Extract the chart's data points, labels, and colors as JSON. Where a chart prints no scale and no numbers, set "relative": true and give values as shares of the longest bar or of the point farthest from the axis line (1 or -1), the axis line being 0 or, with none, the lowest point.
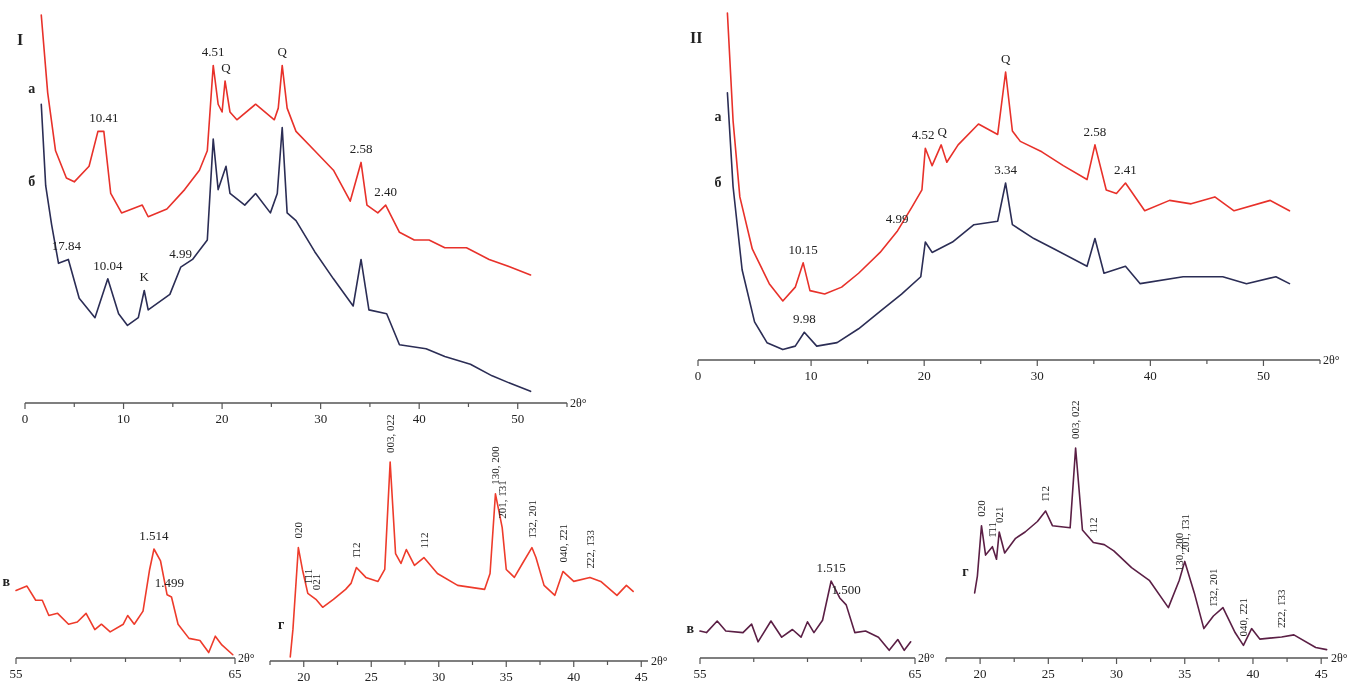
{
  "chart_data": [
    {
      "type": "line",
      "title": "I",
      "xlabel": "2θ°",
      "relative": true,
      "xlim": [
        0,
        55
      ],
      "xticks": [
        0,
        {
          "value": 5,
          "label": null
        },
        10,
        {
          "value": 15,
          "label": null
        },
        20,
        {
          "value": 25,
          "label": null
        },
        30,
        {
          "value": 35,
          "label": null
        },
        40,
        {
          "value": 45,
          "label": null
        },
        50,
        {
          "value": 55,
          "label": null
        }
      ],
      "series": [
        {
          "name": "а",
          "color": "#e8312a",
          "x": [
            1.65,
            2.3,
            3.1,
            4.2,
            5.0,
            6.5,
            7.4,
            8.0,
            8.7,
            9.8,
            11.9,
            12.5,
            14.4,
            16.2,
            17.7,
            18.5,
            19.1,
            19.6,
            20.0,
            20.3,
            20.8,
            21.5,
            23.4,
            25.3,
            25.7,
            26.1,
            26.6,
            27.5,
            29.4,
            31.3,
            33.0,
            34.1,
            34.7,
            35.8,
            36.6,
            38.0,
            39.5,
            41.0,
            42.6,
            44.8,
            47.1,
            49.3,
            51.3
          ],
          "values": [
            1.0,
            0.8,
            0.65,
            0.58,
            0.57,
            0.61,
            0.7,
            0.7,
            0.54,
            0.49,
            0.51,
            0.48,
            0.5,
            0.55,
            0.6,
            0.65,
            0.87,
            0.77,
            0.75,
            0.83,
            0.75,
            0.73,
            0.77,
            0.73,
            0.76,
            0.87,
            0.76,
            0.7,
            0.65,
            0.6,
            0.52,
            0.62,
            0.51,
            0.49,
            0.51,
            0.44,
            0.42,
            0.42,
            0.4,
            0.4,
            0.37,
            0.35,
            0.33
          ]
        },
        {
          "name": "б",
          "color": "#2b2d55",
          "x": [
            1.65,
            2.1,
            2.7,
            3.4,
            4.4,
            5.5,
            7.1,
            8.4,
            9.5,
            10.4,
            11.5,
            12.1,
            12.5,
            14.7,
            15.8,
            17.0,
            18.5,
            19.1,
            19.6,
            20.4,
            20.8,
            22.3,
            23.4,
            24.9,
            25.6,
            26.1,
            26.6,
            27.5,
            29.4,
            31.3,
            33.3,
            34.1,
            34.9,
            36.7,
            38.0,
            40.7,
            42.6,
            45.2,
            47.4,
            49.3,
            51.3
          ],
          "values": [
            0.77,
            0.56,
            0.46,
            0.36,
            0.37,
            0.27,
            0.22,
            0.32,
            0.23,
            0.2,
            0.22,
            0.29,
            0.24,
            0.28,
            0.35,
            0.37,
            0.42,
            0.68,
            0.55,
            0.61,
            0.54,
            0.51,
            0.54,
            0.49,
            0.54,
            0.71,
            0.49,
            0.47,
            0.39,
            0.32,
            0.25,
            0.37,
            0.24,
            0.23,
            0.15,
            0.14,
            0.12,
            0.1,
            0.07,
            0.05,
            0.03
          ]
        }
      ],
      "annotations": [
        {
          "text": "10.41",
          "x": 8,
          "y": 0.7
        },
        {
          "text": "4.51",
          "x": 19.1,
          "y": 0.87
        },
        {
          "text": "Q",
          "x": 20.4,
          "y": 0.83
        },
        {
          "text": "Q",
          "x": 26.1,
          "y": 0.87
        },
        {
          "text": "2.58",
          "x": 34.1,
          "y": 0.62
        },
        {
          "text": "2.40",
          "x": 36.6,
          "y": 0.51
        },
        {
          "text": "17.84",
          "x": 4.2,
          "y": 0.37
        },
        {
          "text": "10.04",
          "x": 8.4,
          "y": 0.32
        },
        {
          "text": "K",
          "x": 12.1,
          "y": 0.29
        },
        {
          "text": "4.99",
          "x": 15.8,
          "y": 0.35
        }
      ]
    },
    {
      "type": "line",
      "title": "II",
      "xlabel": "2θ°",
      "relative": true,
      "xlim": [
        0,
        55
      ],
      "xticks": [
        0,
        {
          "value": 5,
          "label": null
        },
        10,
        {
          "value": 15,
          "label": null
        },
        20,
        {
          "value": 25,
          "label": null
        },
        30,
        {
          "value": 35,
          "label": null
        },
        40,
        {
          "value": 45,
          "label": null
        },
        50,
        {
          "value": 55,
          "label": null
        }
      ],
      "series": [
        {
          "name": "а",
          "color": "#e8312a",
          "x": [
            2.6,
            3.1,
            3.7,
            4.8,
            6.3,
            7.5,
            8.6,
            9.3,
            9.9,
            11.2,
            12.7,
            14.2,
            16.1,
            17.6,
            18.9,
            19.8,
            20.1,
            20.7,
            21.5,
            22.0,
            23.0,
            24.8,
            26.5,
            27.2,
            27.8,
            28.5,
            30.4,
            32.3,
            34.4,
            35.1,
            36.1,
            37.0,
            37.8,
            39.5,
            41.7,
            43.6,
            45.7,
            47.4,
            50.6,
            52.3
          ],
          "values": [
            1.0,
            0.69,
            0.47,
            0.32,
            0.22,
            0.17,
            0.21,
            0.28,
            0.2,
            0.19,
            0.21,
            0.25,
            0.31,
            0.37,
            0.44,
            0.49,
            0.61,
            0.56,
            0.62,
            0.57,
            0.62,
            0.68,
            0.65,
            0.83,
            0.66,
            0.63,
            0.6,
            0.56,
            0.52,
            0.62,
            0.49,
            0.48,
            0.51,
            0.43,
            0.46,
            0.45,
            0.47,
            0.43,
            0.46,
            0.43
          ]
        },
        {
          "name": "б",
          "color": "#2b2d55",
          "x": [
            2.6,
            3.1,
            3.9,
            5.0,
            6.1,
            7.5,
            8.6,
            9.4,
            10.5,
            12.3,
            14.2,
            16.1,
            18.0,
            19.7,
            20.1,
            20.7,
            22.5,
            24.4,
            26.5,
            27.2,
            27.8,
            29.7,
            31.5,
            34.4,
            35.1,
            35.9,
            37.8,
            39.1,
            42.9,
            46.4,
            48.5,
            51.1,
            52.3
          ],
          "values": [
            0.77,
            0.5,
            0.26,
            0.11,
            0.05,
            0.03,
            0.04,
            0.08,
            0.04,
            0.05,
            0.09,
            0.14,
            0.19,
            0.24,
            0.34,
            0.31,
            0.34,
            0.39,
            0.4,
            0.51,
            0.39,
            0.35,
            0.32,
            0.27,
            0.35,
            0.25,
            0.27,
            0.22,
            0.24,
            0.24,
            0.22,
            0.24,
            0.22
          ]
        }
      ],
      "annotations": [
        {
          "text": "10.15",
          "x": 9.3,
          "y": 0.28
        },
        {
          "text": "4.99",
          "x": 17.6,
          "y": 0.37
        },
        {
          "text": "4.52",
          "x": 19.9,
          "y": 0.61
        },
        {
          "text": "Q",
          "x": 21.6,
          "y": 0.62
        },
        {
          "text": "Q",
          "x": 27.2,
          "y": 0.83
        },
        {
          "text": "2.58",
          "x": 35.1,
          "y": 0.62
        },
        {
          "text": "2.41",
          "x": 37.8,
          "y": 0.51
        },
        {
          "text": "3.34",
          "x": 27.2,
          "y": 0.51
        },
        {
          "text": "9.98",
          "x": 9.4,
          "y": 0.08
        }
      ]
    },
    {
      "type": "line",
      "xlabel": "2θ°",
      "relative": true,
      "xlim": [
        55,
        65
      ],
      "xticks": [
        55,
        {
          "value": 57.5,
          "label": null
        },
        {
          "value": 60,
          "label": null
        },
        {
          "value": 62.5,
          "label": null
        },
        65
      ],
      "series": [
        {
          "name": "в",
          "color": "#ee3b2b",
          "x": [
            55.0,
            55.5,
            55.9,
            56.2,
            56.5,
            56.9,
            57.4,
            57.8,
            58.2,
            58.6,
            58.9,
            59.3,
            59.9,
            60.1,
            60.4,
            60.8,
            61.1,
            61.3,
            61.6,
            61.9,
            62.1,
            62.4,
            62.9,
            63.4,
            63.8,
            64.1,
            64.4,
            64.9
          ],
          "values": [
            0.62,
            0.66,
            0.53,
            0.53,
            0.39,
            0.41,
            0.31,
            0.33,
            0.41,
            0.26,
            0.31,
            0.24,
            0.31,
            0.39,
            0.31,
            0.43,
            0.81,
            1.0,
            0.89,
            0.58,
            0.56,
            0.31,
            0.18,
            0.16,
            0.05,
            0.2,
            0.12,
            0.03
          ]
        }
      ],
      "annotations": [
        {
          "text": "1.514",
          "x": 61.3,
          "y": 1.0
        },
        {
          "text": "1.499",
          "x": 62.0,
          "y": 0.57
        }
      ]
    },
    {
      "type": "line",
      "xlabel": "2θ°",
      "relative": true,
      "xlim": [
        17.5,
        45.5
      ],
      "xticks": [
        {
          "value": 17.5,
          "label": null
        },
        20,
        {
          "value": 22.5,
          "label": null
        },
        25,
        {
          "value": 27.5,
          "label": null
        },
        30,
        {
          "value": 32.5,
          "label": null
        },
        35,
        {
          "value": 37.5,
          "label": null
        },
        40,
        {
          "value": 42.5,
          "label": null
        },
        45
      ],
      "series": [
        {
          "name": "г",
          "color": "#ee3b2b",
          "x": [
            19.0,
            19.2,
            19.6,
            19.9,
            20.3,
            20.9,
            21.4,
            22.2,
            23.1,
            23.5,
            23.9,
            24.6,
            25.5,
            26.0,
            26.4,
            26.8,
            27.2,
            27.6,
            28.2,
            28.9,
            29.9,
            31.4,
            33.4,
            33.8,
            34.2,
            34.7,
            35.0,
            35.6,
            36.2,
            36.9,
            37.2,
            37.8,
            38.6,
            39.2,
            40.0,
            41.2,
            42.0,
            43.2,
            43.9,
            44.4
          ],
          "values": [
            0.02,
            0.16,
            0.57,
            0.46,
            0.34,
            0.31,
            0.27,
            0.31,
            0.36,
            0.39,
            0.47,
            0.42,
            0.4,
            0.46,
            1.0,
            0.54,
            0.49,
            0.56,
            0.48,
            0.52,
            0.44,
            0.38,
            0.36,
            0.44,
            0.84,
            0.67,
            0.46,
            0.42,
            0.49,
            0.57,
            0.52,
            0.38,
            0.33,
            0.45,
            0.4,
            0.42,
            0.4,
            0.33,
            0.38,
            0.35
          ]
        }
      ],
      "annotations": [
        {
          "text": "020",
          "x": 19.6,
          "y": 0.57
        },
        {
          "text": "1̄11",
          "x": 20.3,
          "y": 0.34
        },
        {
          "text": "021",
          "x": 20.9,
          "y": 0.31
        },
        {
          "text": "1̄12",
          "x": 23.9,
          "y": 0.47
        },
        {
          "text": "003, 022",
          "x": 26.4,
          "y": 1.0
        },
        {
          "text": "112",
          "x": 28.9,
          "y": 0.52
        },
        {
          "text": "130, 200",
          "x": 34.2,
          "y": 0.84
        },
        {
          "text": "2̄01, 1̄31",
          "x": 34.7,
          "y": 0.67
        },
        {
          "text": "1̄32, 201",
          "x": 36.9,
          "y": 0.57
        },
        {
          "text": "040, 2̄21",
          "x": 39.2,
          "y": 0.45
        },
        {
          "text": "2̄22, 1̄33",
          "x": 41.2,
          "y": 0.42
        }
      ]
    },
    {
      "type": "line",
      "xlabel": "2θ°",
      "relative": true,
      "xlim": [
        55,
        65
      ],
      "xticks": [
        55,
        {
          "value": 57.5,
          "label": null
        },
        {
          "value": 60,
          "label": null
        },
        {
          "value": 62.5,
          "label": null
        },
        65
      ],
      "series": [
        {
          "name": "в",
          "color": "#5b1f45",
          "x": [
            55.0,
            55.3,
            55.8,
            56.2,
            57.0,
            57.4,
            57.7,
            58.3,
            58.8,
            59.3,
            59.7,
            60.0,
            60.3,
            60.7,
            61.1,
            61.5,
            61.8,
            62.2,
            62.7,
            63.3,
            63.8,
            64.2,
            64.5,
            64.8
          ],
          "values": [
            0.35,
            0.33,
            0.48,
            0.35,
            0.33,
            0.44,
            0.21,
            0.48,
            0.27,
            0.37,
            0.27,
            0.47,
            0.33,
            0.49,
            1.0,
            0.78,
            0.69,
            0.33,
            0.35,
            0.27,
            0.1,
            0.24,
            0.1,
            0.21
          ]
        }
      ],
      "annotations": [
        {
          "text": "1.515",
          "x": 61.1,
          "y": 1.0
        },
        {
          "text": "1.500",
          "x": 61.8,
          "y": 0.72
        }
      ]
    },
    {
      "type": "line",
      "xlabel": "2θ°",
      "relative": true,
      "xlim": [
        17.5,
        45.5
      ],
      "xticks": [
        {
          "value": 17.5,
          "label": null
        },
        20,
        {
          "value": 22.5,
          "label": null
        },
        25,
        {
          "value": 27.5,
          "label": null
        },
        30,
        {
          "value": 32.5,
          "label": null
        },
        35,
        {
          "value": 37.5,
          "label": null
        },
        40,
        {
          "value": 42.5,
          "label": null
        },
        45
      ],
      "series": [
        {
          "name": "г",
          "color": "#5b1f45",
          "x": [
            19.6,
            19.8,
            20.1,
            20.4,
            20.9,
            21.2,
            21.4,
            21.8,
            22.6,
            23.3,
            24.2,
            24.8,
            25.3,
            26.6,
            27.0,
            27.5,
            28.3,
            29.1,
            29.8,
            31.1,
            32.4,
            33.8,
            34.6,
            35.0,
            35.7,
            36.4,
            37.1,
            37.8,
            38.7,
            39.3,
            39.9,
            40.5,
            42.1,
            43.0,
            44.6,
            45.4
          ],
          "values": [
            0.31,
            0.39,
            0.63,
            0.49,
            0.53,
            0.47,
            0.6,
            0.5,
            0.57,
            0.6,
            0.65,
            0.7,
            0.63,
            0.62,
            1.0,
            0.61,
            0.55,
            0.54,
            0.51,
            0.43,
            0.37,
            0.24,
            0.37,
            0.46,
            0.31,
            0.14,
            0.2,
            0.24,
            0.12,
            0.06,
            0.14,
            0.09,
            0.1,
            0.11,
            0.05,
            0.04
          ]
        }
      ],
      "annotations": [
        {
          "text": "020",
          "x": 20.1,
          "y": 0.63
        },
        {
          "text": "1̄11",
          "x": 20.9,
          "y": 0.53
        },
        {
          "text": "021",
          "x": 21.4,
          "y": 0.6
        },
        {
          "text": "1̄12",
          "x": 24.8,
          "y": 0.7
        },
        {
          "text": "003, 022",
          "x": 27.0,
          "y": 1.0
        },
        {
          "text": "112",
          "x": 28.3,
          "y": 0.55
        },
        {
          "text": "130, 200",
          "x": 34.6,
          "y": 0.37
        },
        {
          "text": "2̄01, 1̄31",
          "x": 35.0,
          "y": 0.46
        },
        {
          "text": "1̄32, 201",
          "x": 37.1,
          "y": 0.2
        },
        {
          "text": "040, 2̄21",
          "x": 39.3,
          "y": 0.06
        },
        {
          "text": "2̄22, 1̄33",
          "x": 42.1,
          "y": 0.1
        }
      ]
    }
  ]
}
